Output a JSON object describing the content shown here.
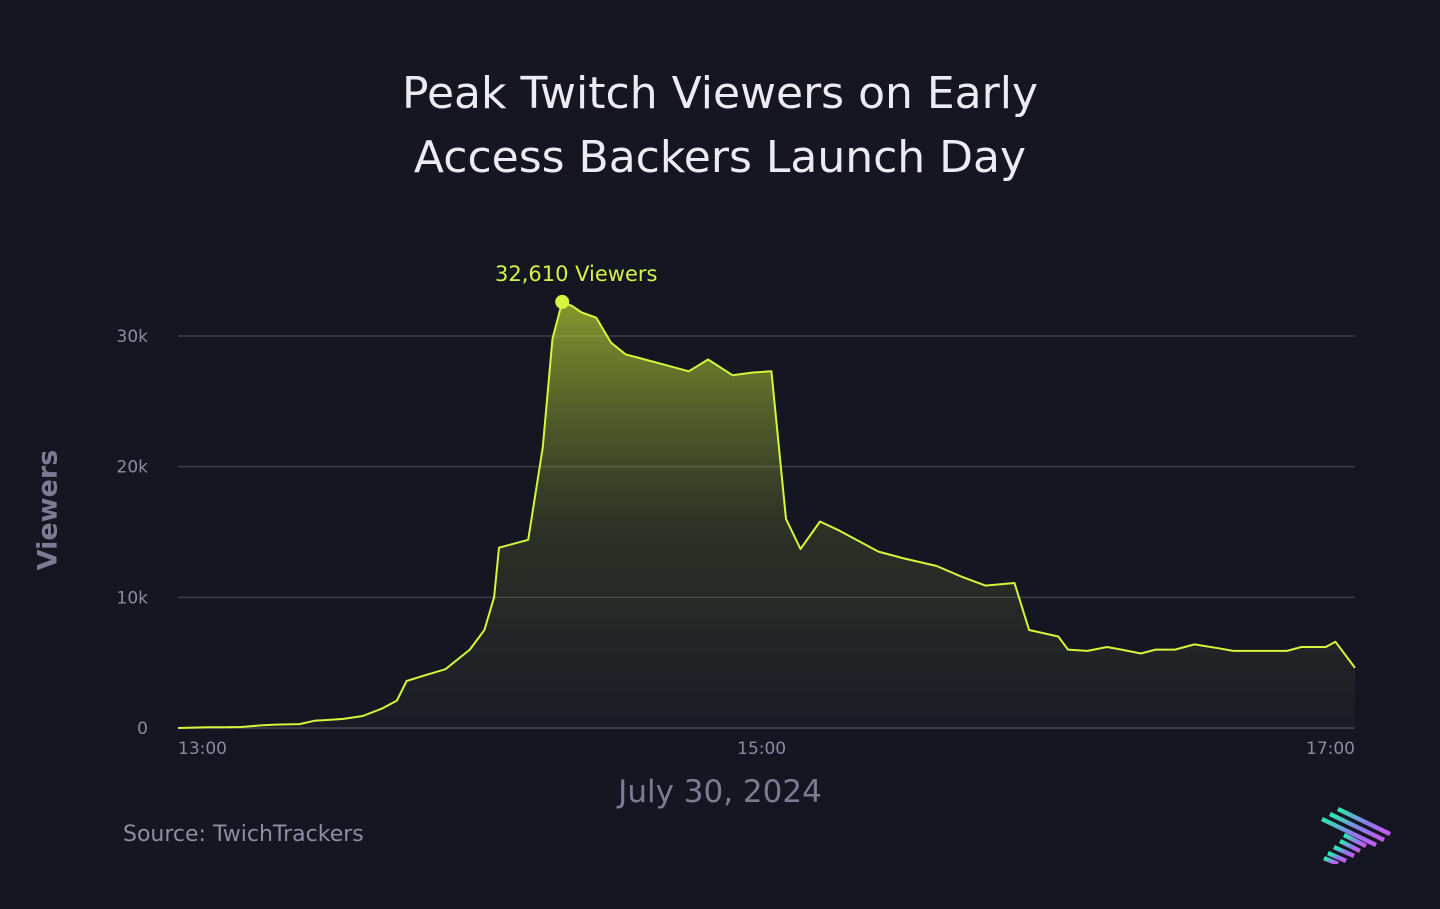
{
  "title_line1": "Peak Twitch Viewers on Early",
  "title_line2": "Access Backers Launch Day",
  "source": "Source: TwichTrackers",
  "logo_icon": "striped-arrow-logo",
  "colors": {
    "background": "#151621",
    "line": "#d7f53c",
    "grid": "#3c3d4c",
    "axis_text": "#8d8aa2"
  },
  "chart_data": {
    "type": "area",
    "title": "Peak Twitch Viewers on Early Access Backers Launch Day",
    "xlabel": "July 30, 2024",
    "ylabel": "Viewers",
    "x_unit": "minutes after 13:00",
    "xlim": [
      0,
      242
    ],
    "ylim": [
      0,
      30000
    ],
    "grid": true,
    "y_ticks": [
      {
        "value": 0,
        "label": "0"
      },
      {
        "value": 10000,
        "label": "10k"
      },
      {
        "value": 20000,
        "label": "20k"
      },
      {
        "value": 30000,
        "label": "30k"
      }
    ],
    "x_ticks": [
      {
        "value": 0,
        "label": "13:00"
      },
      {
        "value": 120,
        "label": "15:00"
      },
      {
        "value": 240,
        "label": "17:00"
      }
    ],
    "peak": {
      "x": 79,
      "y": 32610,
      "label": "32,610 Viewers"
    },
    "series": [
      {
        "name": "Viewers",
        "points": [
          [
            0,
            0
          ],
          [
            3,
            30
          ],
          [
            6,
            50
          ],
          [
            9,
            60
          ],
          [
            13,
            80
          ],
          [
            17,
            200
          ],
          [
            20,
            260
          ],
          [
            25,
            300
          ],
          [
            28,
            550
          ],
          [
            31,
            620
          ],
          [
            34,
            700
          ],
          [
            38,
            920
          ],
          [
            42,
            1500
          ],
          [
            45,
            2100
          ],
          [
            47,
            3600
          ],
          [
            50,
            3950
          ],
          [
            55,
            4500
          ],
          [
            60,
            6000
          ],
          [
            63,
            7500
          ],
          [
            65,
            10000
          ],
          [
            66,
            13800
          ],
          [
            72,
            14400
          ],
          [
            75,
            21500
          ],
          [
            77,
            29800
          ],
          [
            79,
            32610
          ],
          [
            81,
            32300
          ],
          [
            83,
            31800
          ],
          [
            86,
            31400
          ],
          [
            89,
            29500
          ],
          [
            92,
            28600
          ],
          [
            96,
            28200
          ],
          [
            100,
            27800
          ],
          [
            105,
            27300
          ],
          [
            109,
            28200
          ],
          [
            114,
            27000
          ],
          [
            118,
            27200
          ],
          [
            122,
            27300
          ],
          [
            125,
            16000
          ],
          [
            128,
            13700
          ],
          [
            132,
            15800
          ],
          [
            136,
            15100
          ],
          [
            140,
            14300
          ],
          [
            144,
            13500
          ],
          [
            149,
            13000
          ],
          [
            156,
            12400
          ],
          [
            161,
            11600
          ],
          [
            166,
            10900
          ],
          [
            172,
            11100
          ],
          [
            175,
            7500
          ],
          [
            181,
            7000
          ],
          [
            183,
            6000
          ],
          [
            187,
            5900
          ],
          [
            191,
            6200
          ],
          [
            194,
            6000
          ],
          [
            198,
            5700
          ],
          [
            201,
            6000
          ],
          [
            205,
            6000
          ],
          [
            209,
            6400
          ],
          [
            214,
            6100
          ],
          [
            217,
            5900
          ],
          [
            224,
            5900
          ],
          [
            228,
            5900
          ],
          [
            231,
            6200
          ],
          [
            236,
            6200
          ],
          [
            238,
            6600
          ],
          [
            242,
            4600
          ]
        ]
      }
    ]
  }
}
